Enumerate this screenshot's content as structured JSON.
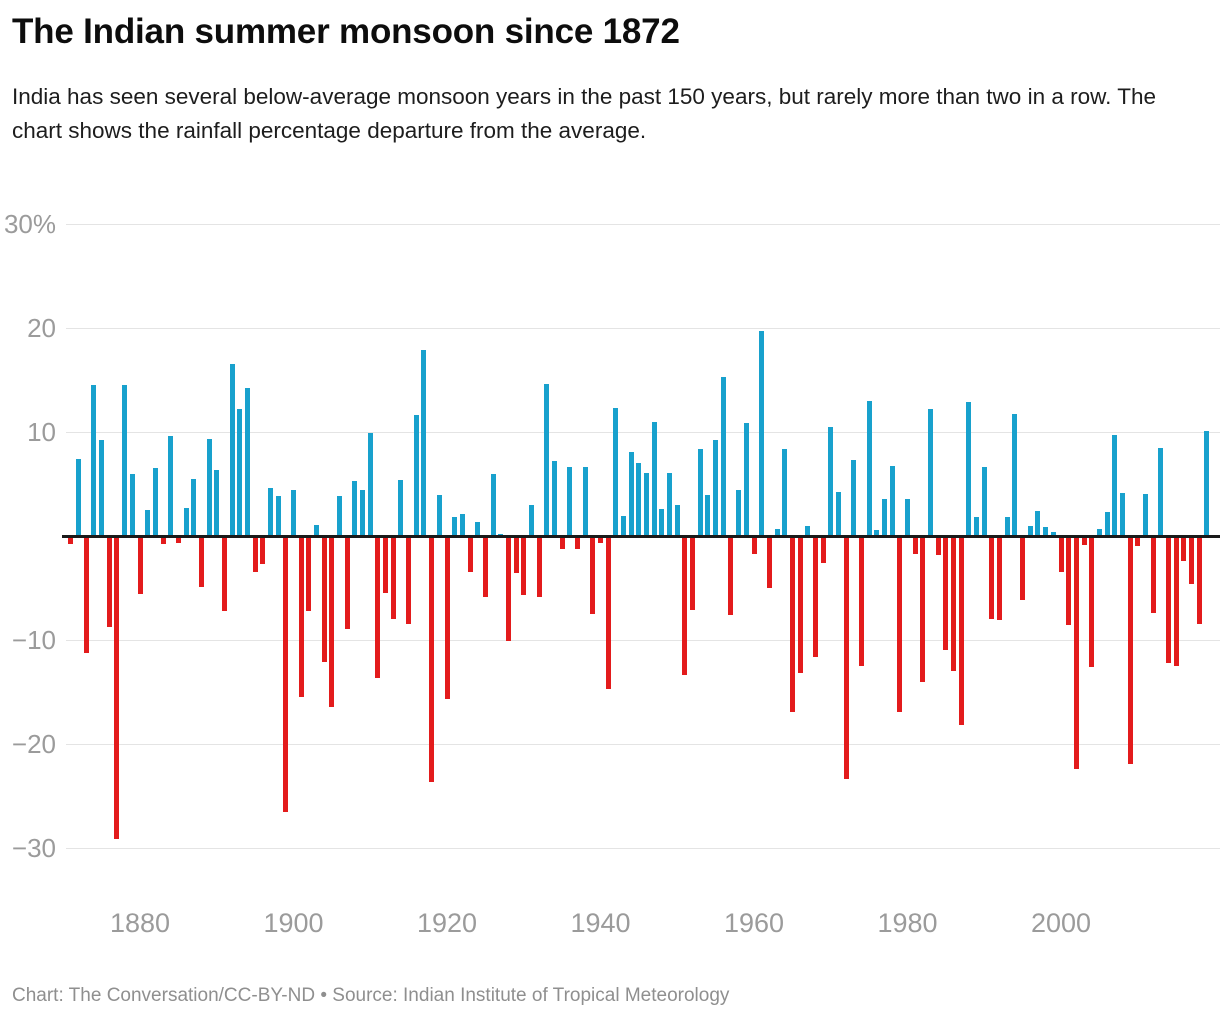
{
  "header": {
    "title": "The Indian summer monsoon since 1872",
    "subtitle": "India has seen several below-average monsoon years in the past 150 years, but rarely more than two in a row. The chart shows the rainfall percentage departure from the average."
  },
  "footer": {
    "credit": "Chart: The Conversation/CC-BY-ND • Source: Indian Institute of Tropical Meteorology"
  },
  "colors": {
    "positive_bar": "#18a1cd",
    "negative_bar": "#e31b1c",
    "zero_axis": "#1a1a1a",
    "gridline": "#e4e4e4",
    "tick_label": "#9b9b9b"
  },
  "chart_data": {
    "type": "bar",
    "title": "The Indian summer monsoon since 1872",
    "ylabel": "Rainfall percentage departure from average",
    "ylim": [
      -30,
      30
    ],
    "grid": "horizontal",
    "y_ticks": [
      {
        "value": 30,
        "label": "30%"
      },
      {
        "value": 20,
        "label": "20"
      },
      {
        "value": 10,
        "label": "10"
      },
      {
        "value": -10,
        "label": "−10"
      },
      {
        "value": -20,
        "label": "−20"
      },
      {
        "value": -30,
        "label": "−30"
      }
    ],
    "x_ticks": [
      1880,
      1900,
      1920,
      1940,
      1960,
      1980,
      2000
    ],
    "series": [
      {
        "name": "Rainfall % departure from average",
        "points": [
          [
            1871,
            -0.7
          ],
          [
            1872,
            7.4
          ],
          [
            1873,
            -11.2
          ],
          [
            1874,
            14.5
          ],
          [
            1875,
            9.2
          ],
          [
            1876,
            -8.7
          ],
          [
            1877,
            -29.0
          ],
          [
            1878,
            14.5
          ],
          [
            1879,
            6.0
          ],
          [
            1880,
            -5.5
          ],
          [
            1881,
            2.5
          ],
          [
            1882,
            6.5
          ],
          [
            1883,
            -0.7
          ],
          [
            1884,
            9.6
          ],
          [
            1885,
            -0.6
          ],
          [
            1886,
            2.7
          ],
          [
            1887,
            5.5
          ],
          [
            1888,
            -4.8
          ],
          [
            1889,
            9.3
          ],
          [
            1890,
            6.3
          ],
          [
            1891,
            -7.1
          ],
          [
            1892,
            16.5
          ],
          [
            1893,
            12.2
          ],
          [
            1894,
            14.2
          ],
          [
            1895,
            -3.4
          ],
          [
            1896,
            -2.6
          ],
          [
            1897,
            4.6
          ],
          [
            1898,
            3.8
          ],
          [
            1899,
            -26.4
          ],
          [
            1900,
            4.4
          ],
          [
            1901,
            -15.4
          ],
          [
            1902,
            -7.1
          ],
          [
            1903,
            1.1
          ],
          [
            1904,
            -12.0
          ],
          [
            1905,
            -16.3
          ],
          [
            1906,
            3.8
          ],
          [
            1907,
            -8.8
          ],
          [
            1908,
            5.3
          ],
          [
            1909,
            4.4
          ],
          [
            1910,
            9.9
          ],
          [
            1911,
            -13.6
          ],
          [
            1912,
            -5.4
          ],
          [
            1913,
            -7.9
          ],
          [
            1914,
            5.4
          ],
          [
            1915,
            -8.4
          ],
          [
            1916,
            11.6
          ],
          [
            1917,
            17.9
          ],
          [
            1918,
            -23.6
          ],
          [
            1919,
            3.9
          ],
          [
            1920,
            -15.6
          ],
          [
            1921,
            1.8
          ],
          [
            1922,
            2.1
          ],
          [
            1923,
            -3.4
          ],
          [
            1924,
            1.3
          ],
          [
            1925,
            -5.8
          ],
          [
            1926,
            6.0
          ],
          [
            1927,
            0.1
          ],
          [
            1928,
            -10.0
          ],
          [
            1929,
            -3.5
          ],
          [
            1930,
            -5.6
          ],
          [
            1931,
            3.0
          ],
          [
            1932,
            -5.8
          ],
          [
            1933,
            14.6
          ],
          [
            1934,
            7.2
          ],
          [
            1935,
            -1.2
          ],
          [
            1936,
            6.6
          ],
          [
            1937,
            -1.2
          ],
          [
            1938,
            6.6
          ],
          [
            1939,
            -7.4
          ],
          [
            1940,
            -0.6
          ],
          [
            1941,
            -14.6
          ],
          [
            1942,
            12.3
          ],
          [
            1943,
            1.9
          ],
          [
            1944,
            8.1
          ],
          [
            1945,
            7.0
          ],
          [
            1946,
            6.1
          ],
          [
            1947,
            11.0
          ],
          [
            1948,
            2.6
          ],
          [
            1949,
            6.1
          ],
          [
            1950,
            3.0
          ],
          [
            1951,
            -13.3
          ],
          [
            1952,
            -7.0
          ],
          [
            1953,
            8.4
          ],
          [
            1954,
            3.9
          ],
          [
            1955,
            9.2
          ],
          [
            1956,
            15.3
          ],
          [
            1957,
            -7.5
          ],
          [
            1958,
            4.4
          ],
          [
            1959,
            10.9
          ],
          [
            1960,
            -1.6
          ],
          [
            1961,
            19.7
          ],
          [
            1962,
            -4.9
          ],
          [
            1963,
            0.7
          ],
          [
            1964,
            8.4
          ],
          [
            1965,
            -16.8
          ],
          [
            1966,
            -13.1
          ],
          [
            1967,
            1.0
          ],
          [
            1968,
            -11.5
          ],
          [
            1969,
            -2.5
          ],
          [
            1970,
            10.5
          ],
          [
            1971,
            4.2
          ],
          [
            1972,
            -23.3
          ],
          [
            1973,
            7.3
          ],
          [
            1974,
            -12.4
          ],
          [
            1975,
            13.0
          ],
          [
            1976,
            0.6
          ],
          [
            1977,
            3.6
          ],
          [
            1978,
            6.7
          ],
          [
            1979,
            -16.8
          ],
          [
            1980,
            3.6
          ],
          [
            1981,
            -1.6
          ],
          [
            1982,
            -13.9
          ],
          [
            1983,
            12.2
          ],
          [
            1984,
            -1.7
          ],
          [
            1985,
            -10.9
          ],
          [
            1986,
            -12.9
          ],
          [
            1987,
            -18.1
          ],
          [
            1988,
            12.9
          ],
          [
            1989,
            1.8
          ],
          [
            1990,
            6.6
          ],
          [
            1991,
            -7.9
          ],
          [
            1992,
            -8.0
          ],
          [
            1993,
            1.8
          ],
          [
            1994,
            11.7
          ],
          [
            1995,
            -6.1
          ],
          [
            1996,
            1.0
          ],
          [
            1997,
            2.4
          ],
          [
            1998,
            0.9
          ],
          [
            1999,
            0.4
          ],
          [
            2000,
            -3.4
          ],
          [
            2001,
            -8.5
          ],
          [
            2002,
            -22.3
          ],
          [
            2003,
            -0.8
          ],
          [
            2004,
            -12.5
          ],
          [
            2005,
            0.7
          ],
          [
            2006,
            2.3
          ],
          [
            2007,
            9.7
          ],
          [
            2008,
            4.1
          ],
          [
            2009,
            -21.8
          ],
          [
            2010,
            -0.9
          ],
          [
            2011,
            4.0
          ],
          [
            2012,
            -7.3
          ],
          [
            2013,
            8.5
          ],
          [
            2014,
            -12.1
          ],
          [
            2015,
            -12.4
          ],
          [
            2016,
            -2.3
          ],
          [
            2017,
            -4.5
          ],
          [
            2018,
            -8.4
          ],
          [
            2019,
            10.1
          ]
        ]
      }
    ]
  }
}
